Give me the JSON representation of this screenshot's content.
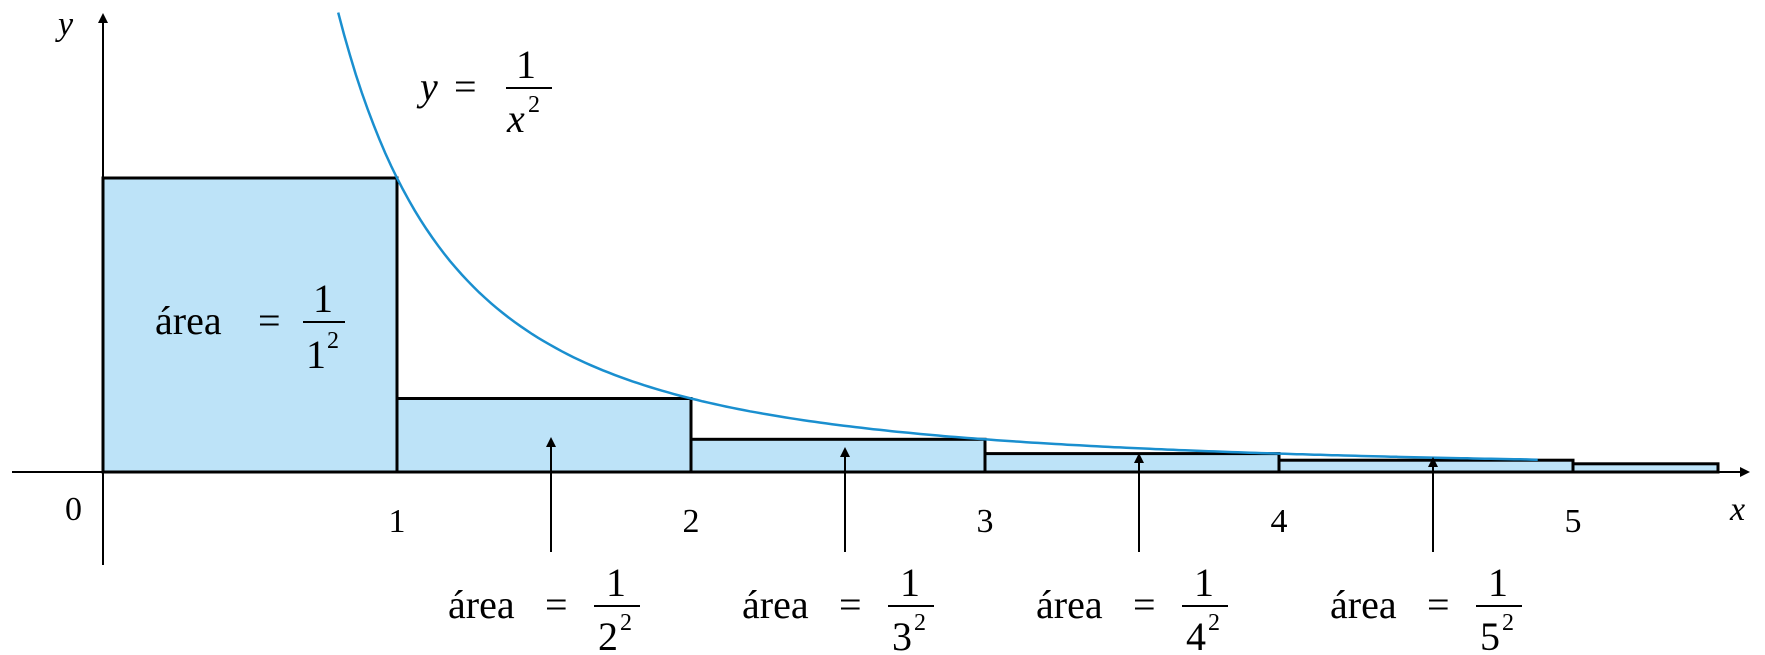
{
  "axes": {
    "x_label": "x",
    "y_label": "y",
    "origin_label": "0",
    "x_tick_labels": [
      "1",
      "2",
      "3",
      "4",
      "5"
    ]
  },
  "curve": {
    "lhs": "y",
    "equals": "=",
    "numerator": "1",
    "denominator_base": "x",
    "denominator_exponent": "2",
    "color": "#1a8fcf"
  },
  "rect_fill": "#bde3f8",
  "area_labels": [
    {
      "word": "área",
      "equals": "=",
      "numerator": "1",
      "base": "1",
      "exponent": "2"
    },
    {
      "word": "área",
      "equals": "=",
      "numerator": "1",
      "base": "2",
      "exponent": "2"
    },
    {
      "word": "área",
      "equals": "=",
      "numerator": "1",
      "base": "3",
      "exponent": "2"
    },
    {
      "word": "área",
      "equals": "=",
      "numerator": "1",
      "base": "4",
      "exponent": "2"
    },
    {
      "word": "área",
      "equals": "=",
      "numerator": "1",
      "base": "5",
      "exponent": "2"
    }
  ]
}
